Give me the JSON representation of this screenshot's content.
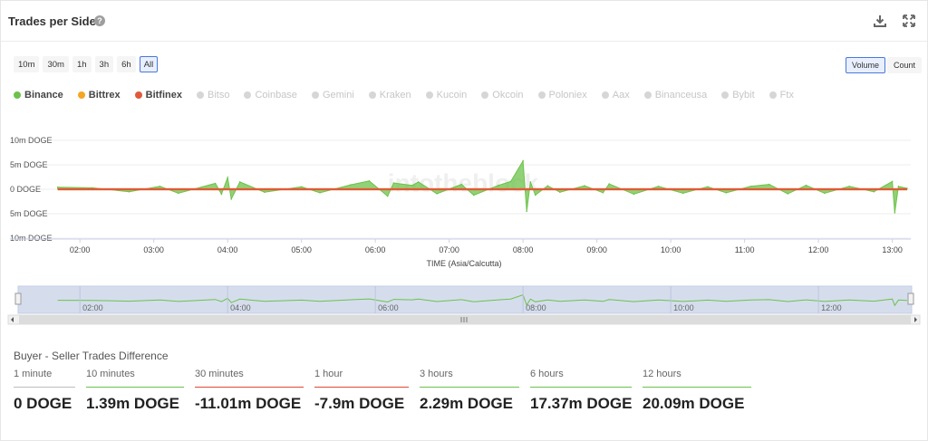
{
  "header": {
    "title": "Trades per Side",
    "help_icon": "?"
  },
  "range_buttons": [
    "10m",
    "30m",
    "1h",
    "3h",
    "6h",
    "All"
  ],
  "active_range": "All",
  "mode_buttons": [
    "Volume",
    "Count"
  ],
  "active_mode": "Volume",
  "legend": [
    {
      "name": "Binance",
      "color": "#6cc24a",
      "active": true
    },
    {
      "name": "Bittrex",
      "color": "#f5a623",
      "active": true
    },
    {
      "name": "Bitfinex",
      "color": "#e05a3a",
      "active": true
    },
    {
      "name": "Bitso",
      "color": "#d6d6d6",
      "active": false
    },
    {
      "name": "Coinbase",
      "color": "#d6d6d6",
      "active": false
    },
    {
      "name": "Gemini",
      "color": "#d6d6d6",
      "active": false
    },
    {
      "name": "Kraken",
      "color": "#d6d6d6",
      "active": false
    },
    {
      "name": "Kucoin",
      "color": "#d6d6d6",
      "active": false
    },
    {
      "name": "Okcoin",
      "color": "#d6d6d6",
      "active": false
    },
    {
      "name": "Poloniex",
      "color": "#d6d6d6",
      "active": false
    },
    {
      "name": "Aax",
      "color": "#d6d6d6",
      "active": false
    },
    {
      "name": "Binanceusa",
      "color": "#d6d6d6",
      "active": false
    },
    {
      "name": "Bybit",
      "color": "#d6d6d6",
      "active": false
    },
    {
      "name": "Ftx",
      "color": "#d6d6d6",
      "active": false
    }
  ],
  "chart_data": {
    "type": "area",
    "xlabel": "TIME (Asia/Calcutta)",
    "x_ticks": [
      "02:00",
      "03:00",
      "04:00",
      "05:00",
      "06:00",
      "07:00",
      "08:00",
      "09:00",
      "10:00",
      "11:00",
      "12:00",
      "13:00"
    ],
    "y_ticks": [
      "10m DOGE",
      "5m DOGE",
      "0 DOGE",
      "5m DOGE",
      "10m DOGE"
    ],
    "ylim": [
      -10,
      10
    ],
    "y_unit": "m DOGE",
    "xlim": [
      "01:40",
      "13:15"
    ],
    "grid": true,
    "legend_position": "top-left",
    "watermark": "intotheblock",
    "series": [
      {
        "name": "Binance",
        "color": "#6cc24a",
        "x": [
          "01:42",
          "02:10",
          "02:40",
          "03:05",
          "03:20",
          "03:50",
          "03:55",
          "04:00",
          "04:03",
          "04:10",
          "04:30",
          "05:00",
          "05:15",
          "05:40",
          "05:55",
          "06:10",
          "06:15",
          "06:30",
          "06:35",
          "06:50",
          "07:10",
          "07:20",
          "07:40",
          "07:50",
          "08:00",
          "08:03",
          "08:06",
          "08:10",
          "08:20",
          "08:30",
          "08:50",
          "09:05",
          "09:10",
          "09:30",
          "09:50",
          "10:10",
          "10:30",
          "10:45",
          "11:05",
          "11:20",
          "11:35",
          "11:50",
          "12:05",
          "12:25",
          "12:45",
          "13:00",
          "13:02",
          "13:05",
          "13:12"
        ],
        "values": [
          0.4,
          0.3,
          -0.5,
          0.6,
          -0.8,
          1.2,
          -1.0,
          2.4,
          -2.0,
          1.5,
          -0.6,
          0.5,
          -0.7,
          0.9,
          1.7,
          -1.4,
          1.3,
          0.8,
          1.5,
          -0.9,
          1.0,
          -1.2,
          0.8,
          1.6,
          5.8,
          -4.5,
          1.5,
          -1.2,
          0.7,
          -0.6,
          0.7,
          -0.7,
          1.1,
          -1.0,
          0.6,
          -0.8,
          0.5,
          -0.7,
          0.6,
          1.0,
          -0.9,
          0.8,
          -0.8,
          0.6,
          -0.5,
          1.6,
          -4.8,
          0.6,
          0.2
        ]
      },
      {
        "name": "Bittrex",
        "color": "#f5a623",
        "x": [
          "01:42",
          "13:12"
        ],
        "values": [
          0.0,
          0.0
        ]
      },
      {
        "name": "Bitfinex",
        "color": "#e05a3a",
        "x": [
          "01:42",
          "13:12"
        ],
        "values": [
          0.0,
          0.0
        ]
      }
    ],
    "navigator_ticks": [
      "02:00",
      "04:00",
      "06:00",
      "08:00",
      "10:00",
      "12:00"
    ]
  },
  "stats": {
    "title": "Buyer - Seller Trades Difference",
    "items": [
      {
        "label": "1 minute",
        "value": "0 DOGE",
        "color": "#bdbdbd"
      },
      {
        "label": "10 minutes",
        "value": "1.39m DOGE",
        "color": "#6cc24a"
      },
      {
        "label": "30 minutes",
        "value": "-11.01m DOGE",
        "color": "#e0483a"
      },
      {
        "label": "1 hour",
        "value": "-7.9m DOGE",
        "color": "#e0483a"
      },
      {
        "label": "3 hours",
        "value": "2.29m DOGE",
        "color": "#6cc24a"
      },
      {
        "label": "6 hours",
        "value": "17.37m DOGE",
        "color": "#6cc24a"
      },
      {
        "label": "12 hours",
        "value": "20.09m DOGE",
        "color": "#6cc24a"
      }
    ]
  }
}
